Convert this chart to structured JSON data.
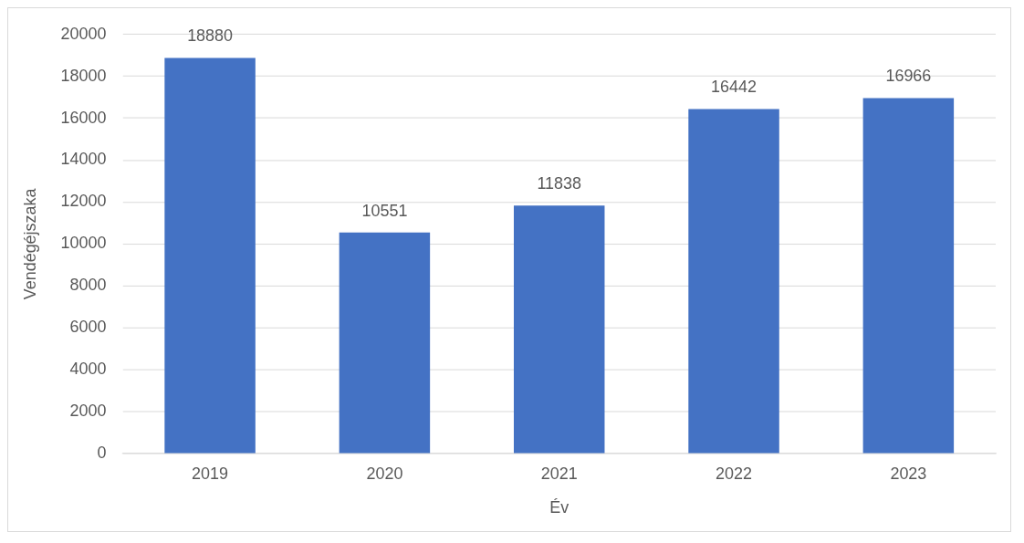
{
  "chart_data": {
    "type": "bar",
    "xlabel": "Év",
    "ylabel": "Vendégéjszaka",
    "categories": [
      "2019",
      "2020",
      "2021",
      "2022",
      "2023"
    ],
    "values": [
      18880,
      10551,
      11838,
      16442,
      16966
    ],
    "color": "#4472c4",
    "ylim": [
      0,
      20000
    ],
    "yticks": [
      0,
      2000,
      4000,
      6000,
      8000,
      10000,
      12000,
      14000,
      16000,
      18000,
      20000
    ],
    "grid": "y",
    "data_labels": true,
    "legend": false
  }
}
